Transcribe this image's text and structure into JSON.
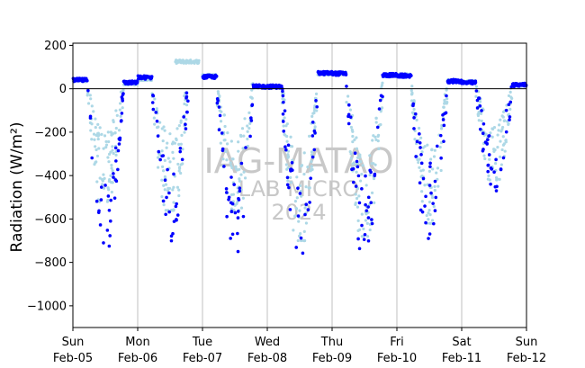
{
  "chart_data": {
    "type": "scatter",
    "ylabel": "Radiation (W/m²)",
    "ylim": [
      -1100,
      210
    ],
    "yticks": [
      200,
      0,
      -200,
      -400,
      -600,
      -800,
      -1000
    ],
    "ytick_labels": [
      "200",
      "0",
      "−200",
      "−400",
      "−600",
      "−800",
      "−1000"
    ],
    "xlim_days": [
      0,
      7
    ],
    "xtick_days": [
      0,
      1,
      2,
      3,
      4,
      5,
      6,
      7
    ],
    "xtick_labels": [
      {
        "day": "Sun",
        "date": "Feb-05"
      },
      {
        "day": "Mon",
        "date": "Feb-06"
      },
      {
        "day": "Tue",
        "date": "Feb-07"
      },
      {
        "day": "Wed",
        "date": "Feb-08"
      },
      {
        "day": "Thu",
        "date": "Feb-09"
      },
      {
        "day": "Fri",
        "date": "Feb-10"
      },
      {
        "day": "Sat",
        "date": "Feb-11"
      },
      {
        "day": "Sun",
        "date": "Feb-12"
      }
    ],
    "vertical_grid_at_day_boundaries": true,
    "zero_line": true,
    "series": [
      {
        "color": "#add8e6",
        "marker_size": 1.6,
        "daily": [
          {
            "start": 0.0,
            "end": 0.22,
            "base": 40
          },
          {
            "start": 0.22,
            "end": 0.78,
            "min": -520,
            "spread": 160
          },
          {
            "start": 0.78,
            "end": 1.0,
            "base": 25
          },
          {
            "start": 1.0,
            "end": 1.22,
            "base": 45
          },
          {
            "start": 1.22,
            "end": 1.78,
            "min": -560,
            "spread": 180
          },
          {
            "start": 1.58,
            "end": 1.95,
            "base": 125
          },
          {
            "start": 2.0,
            "end": 2.22,
            "base": 60
          },
          {
            "start": 2.22,
            "end": 2.78,
            "min": -560,
            "spread": 170
          },
          {
            "start": 2.78,
            "end": 3.0,
            "base": 10
          },
          {
            "start": 3.0,
            "end": 3.22,
            "base": 10
          },
          {
            "start": 3.22,
            "end": 3.78,
            "min": -700,
            "spread": 180
          },
          {
            "start": 3.78,
            "end": 4.0,
            "base": 70
          },
          {
            "start": 4.0,
            "end": 4.22,
            "base": 72
          },
          {
            "start": 4.22,
            "end": 4.78,
            "min": -680,
            "spread": 180
          },
          {
            "start": 4.78,
            "end": 5.0,
            "base": 62
          },
          {
            "start": 5.0,
            "end": 5.22,
            "base": 62
          },
          {
            "start": 5.22,
            "end": 5.78,
            "min": -620,
            "spread": 170
          },
          {
            "start": 5.78,
            "end": 6.0,
            "base": 35
          },
          {
            "start": 6.0,
            "end": 6.22,
            "base": 30
          },
          {
            "start": 6.22,
            "end": 6.78,
            "min": -420,
            "spread": 120
          },
          {
            "start": 6.78,
            "end": 7.0,
            "base": 18
          }
        ]
      },
      {
        "color": "#0000ff",
        "marker_size": 1.8,
        "daily": [
          {
            "start": 0.0,
            "end": 0.22,
            "base": 40
          },
          {
            "start": 0.22,
            "end": 0.78,
            "min": -750,
            "spread": 140
          },
          {
            "start": 0.78,
            "end": 1.0,
            "base": 28
          },
          {
            "start": 1.0,
            "end": 1.22,
            "base": 52
          },
          {
            "start": 1.22,
            "end": 1.78,
            "min": -720,
            "spread": 150
          },
          {
            "start": 2.0,
            "end": 2.22,
            "base": 55
          },
          {
            "start": 2.22,
            "end": 2.78,
            "min": -750,
            "spread": 150
          },
          {
            "start": 2.78,
            "end": 3.0,
            "base": 10
          },
          {
            "start": 3.0,
            "end": 3.22,
            "base": 10
          },
          {
            "start": 3.22,
            "end": 3.78,
            "min": -830,
            "spread": 160
          },
          {
            "start": 3.78,
            "end": 4.0,
            "base": 72
          },
          {
            "start": 4.0,
            "end": 4.22,
            "base": 70
          },
          {
            "start": 4.22,
            "end": 4.78,
            "min": -780,
            "spread": 160
          },
          {
            "start": 4.78,
            "end": 5.0,
            "base": 63
          },
          {
            "start": 5.0,
            "end": 5.22,
            "base": 60
          },
          {
            "start": 5.22,
            "end": 5.78,
            "min": -690,
            "spread": 150
          },
          {
            "start": 5.78,
            "end": 6.0,
            "base": 35
          },
          {
            "start": 6.0,
            "end": 6.22,
            "base": 28
          },
          {
            "start": 6.22,
            "end": 6.78,
            "min": -470,
            "spread": 110
          },
          {
            "start": 6.78,
            "end": 7.0,
            "base": 18
          }
        ]
      }
    ],
    "watermark": [
      "IAG-MATAO",
      "LAB MICRO",
      "2024"
    ]
  }
}
